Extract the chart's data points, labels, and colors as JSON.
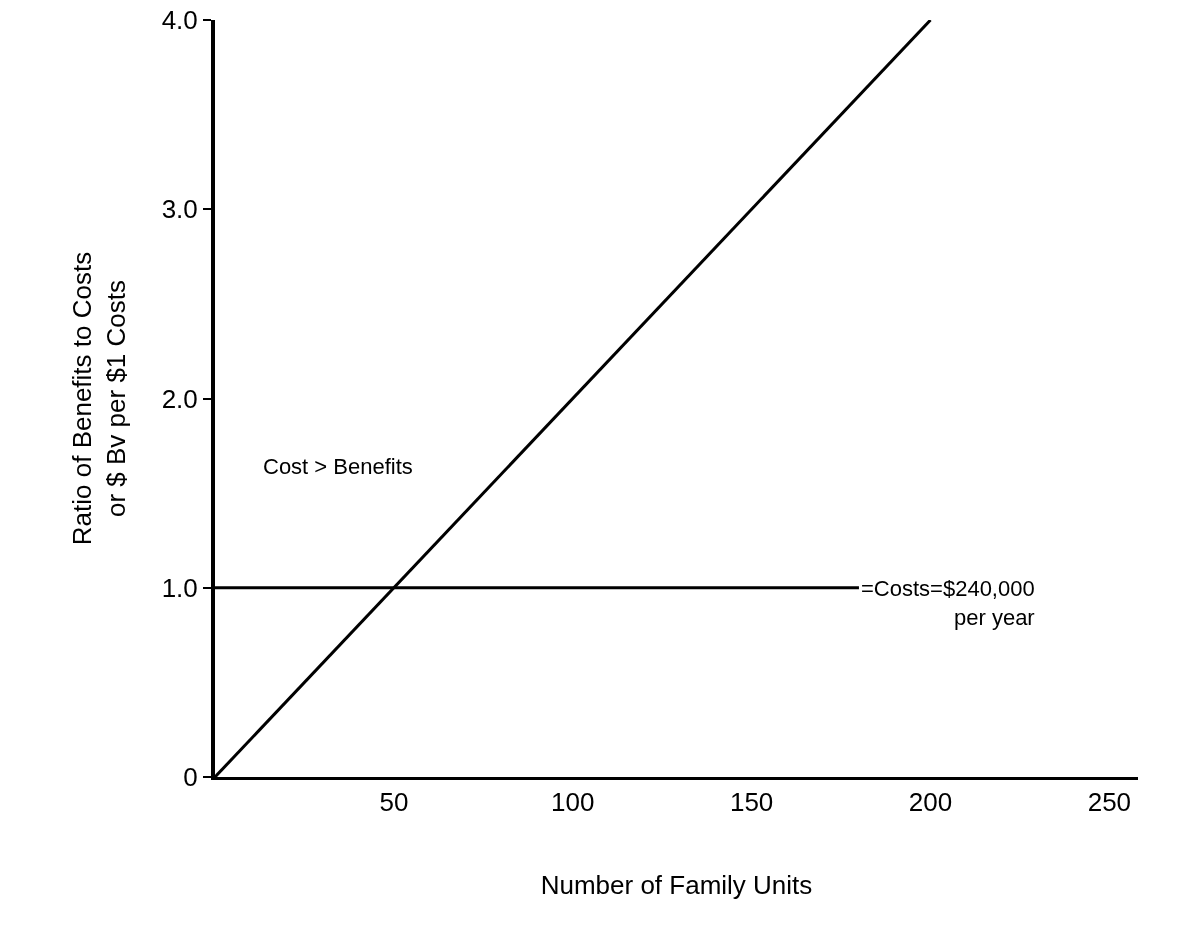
{
  "chart_data": {
    "type": "line",
    "xlabel": "Number of Family Units",
    "ylabel": "Ratio of Benefits to Costs\nor $ Bv per $1 Costs",
    "series": [
      {
        "color": "#000000",
        "x": [
          0,
          200
        ],
        "values": [
          0,
          4.0
        ]
      },
      {
        "color": "#000000",
        "x": [
          0,
          180
        ],
        "values": [
          1.0,
          1.0
        ]
      }
    ],
    "xlim": [
      0,
      258
    ],
    "xticks": [
      50,
      100,
      150,
      200,
      250
    ],
    "ylim": [
      0,
      4.0
    ],
    "yticks": [
      0,
      {
        "value": 1,
        "label": "1.0"
      },
      {
        "value": 2,
        "label": "2.0"
      },
      {
        "value": 3,
        "label": "3.0"
      },
      {
        "value": 4,
        "label": "4.0"
      }
    ],
    "annotations": [
      "Cost > Benefits",
      {
        "text": "=Costs=$240,000\nper year",
        "x": 180,
        "y": 1.0
      }
    ],
    "grid": false,
    "marker": "none",
    "line_style": "solid"
  }
}
